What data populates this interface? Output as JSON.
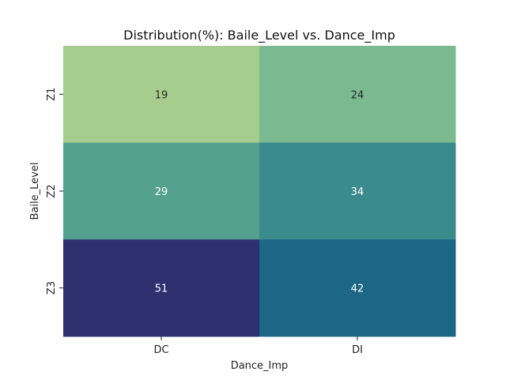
{
  "chart_data": {
    "type": "heatmap",
    "title": "Distribution(%): Baile_Level vs. Dance_Imp",
    "xlabel": "Dance_Imp",
    "ylabel": "Baile_Level",
    "x_categories": [
      "DC",
      "DI"
    ],
    "y_categories": [
      "Z1",
      "Z2",
      "Z3"
    ],
    "values": [
      [
        19,
        24
      ],
      [
        29,
        34
      ],
      [
        51,
        42
      ]
    ],
    "colormap": "crest",
    "colorbar": false,
    "cell_colors": [
      [
        "#a6cd8d",
        "#7bba91"
      ],
      [
        "#55a18f",
        "#3b8a8c"
      ],
      [
        "#2d2f6f",
        "#1d6686"
      ]
    ],
    "label_colors": [
      [
        "#262626",
        "#262626"
      ],
      [
        "#ffffff",
        "#ffffff"
      ],
      [
        "#ffffff",
        "#ffffff"
      ]
    ]
  }
}
